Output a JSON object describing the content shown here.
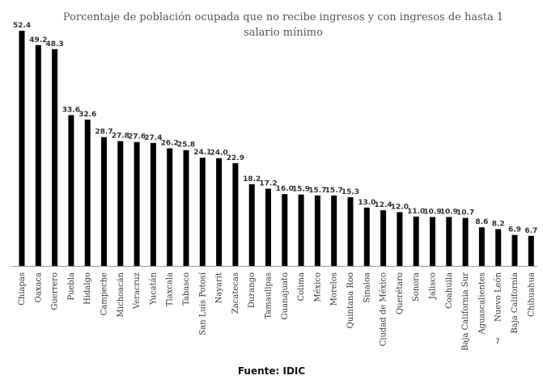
{
  "chart_data": {
    "type": "bar",
    "title": "Porcentaje de población ocupada que no recibe ingresos y con ingresos de hasta 1 salario mínimo",
    "categories": [
      "Chiapas",
      "Oaxaca",
      "Guerrero",
      "Puebla",
      "Hidalgo",
      "Campeche",
      "Michoacán",
      "Veracruz",
      "Yucatán",
      "Tlaxcala",
      "Tabasco",
      "San Luis Potosí",
      "Nayarit",
      "Zacatecas",
      "Durango",
      "Tamaulipas",
      "Guanajuato",
      "Colima",
      "México",
      "Morelos",
      "Quintana Roo",
      "Sinaloa",
      "Ciudad de México",
      "Querétaro",
      "Sonora",
      "Jalisco",
      "Coahuila",
      "Baja California Sur",
      "Aguascalientes",
      "Nuevo León",
      "Baja California",
      "Chihuahua"
    ],
    "values": [
      52.4,
      49.2,
      48.3,
      33.6,
      32.6,
      28.7,
      27.8,
      27.6,
      27.4,
      26.2,
      25.8,
      24.1,
      24.0,
      22.9,
      18.2,
      17.2,
      16.0,
      15.9,
      15.7,
      15.7,
      15.3,
      13.0,
      12.4,
      12.0,
      11.0,
      10.9,
      10.9,
      10.7,
      8.6,
      8.2,
      6.9,
      6.7
    ],
    "value_labels": [
      "52.4",
      "49.2",
      "48.3",
      "33.6",
      "32.6",
      "28.7",
      "27.8",
      "27.6",
      "27.4",
      "26.2",
      "25.8",
      "24.1",
      "24.0",
      "22.9",
      "18.2",
      "17.2",
      "16.0",
      "15.9",
      "15.7",
      "15.7",
      "15.3",
      "13.0",
      "12.4",
      "12.0",
      "11.0",
      "10.9",
      "10.9",
      "10.7",
      "8.6",
      "8.2",
      "6.9",
      "6.7"
    ],
    "ylim": [
      0,
      52.4
    ],
    "grid": false,
    "legend": "none",
    "bar_color": "#000000"
  },
  "source": "Fuente: IDIC",
  "stray_mark": "7"
}
